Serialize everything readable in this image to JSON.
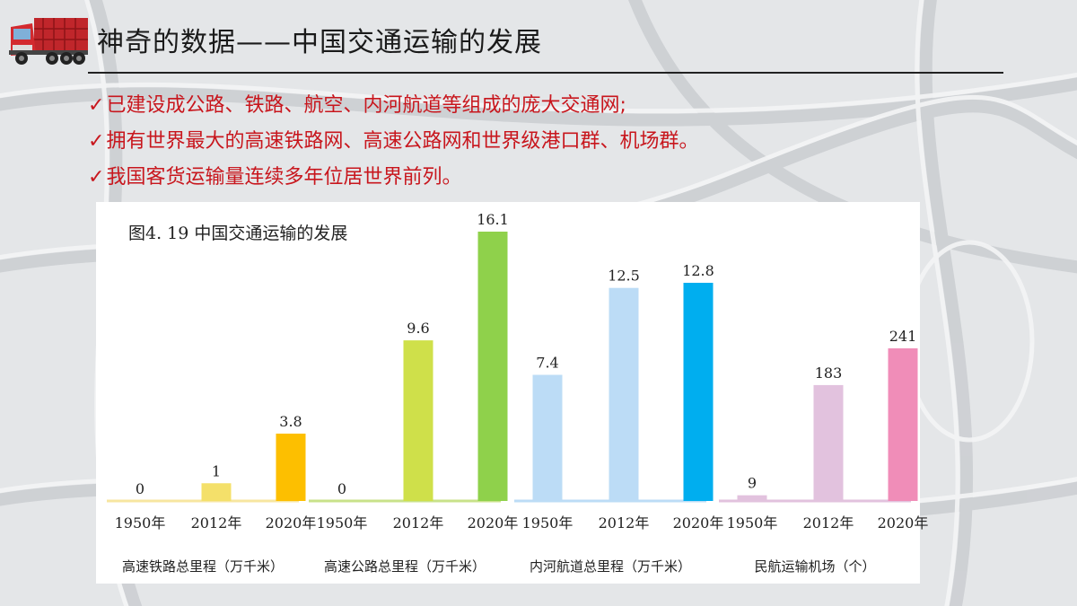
{
  "header": {
    "title": "神奇的数据——中国交通运输的发展",
    "truck_icon": "truck-icon"
  },
  "bullets": [
    {
      "check": "✓",
      "text": "已建设成公路、铁路、航空、内河航道等组成的庞大交通网;"
    },
    {
      "check": "✓",
      "text": "拥有世界最大的高速铁路网、高速公路网和世界级港口群、机场群。"
    },
    {
      "check": "✓",
      "text": "我国客货运输量连续多年位居世界前列。"
    }
  ],
  "colors": {
    "bullet": "#c8161d",
    "rule": "#222222"
  },
  "figure_title": "图4. 19  中国交通运输的发展",
  "chart_data": [
    {
      "type": "bar",
      "title": "高速铁路总里程（万千米）",
      "categories": [
        "1950年",
        "2012年",
        "2020年"
      ],
      "values": [
        0,
        1,
        3.8
      ],
      "value_labels": [
        "0",
        "1",
        "3.8"
      ],
      "colors": [
        "#f7e6a0",
        "#f4e06a",
        "#fdbf00"
      ]
    },
    {
      "type": "bar",
      "title": "高速公路总里程（万千米）",
      "categories": [
        "1950年",
        "2012年",
        "2020年"
      ],
      "values": [
        0,
        9.6,
        16.1
      ],
      "value_labels": [
        "0",
        "9.6",
        "16.1"
      ],
      "colors": [
        "#c8e28a",
        "#cfe04a",
        "#8fd14b"
      ]
    },
    {
      "type": "bar",
      "title": "内河航道总里程（万千米）",
      "categories": [
        "1950年",
        "2012年",
        "2020年"
      ],
      "values": [
        7.4,
        12.5,
        12.8
      ],
      "value_labels": [
        "7.4",
        "12.5",
        "12.8"
      ],
      "colors": [
        "#bcdcf6",
        "#bcdcf6",
        "#00aeef"
      ]
    },
    {
      "type": "bar",
      "title": "民航运输机场（个）",
      "categories": [
        "1950年",
        "2012年",
        "2020年"
      ],
      "values": [
        9,
        183,
        241
      ],
      "value_labels": [
        "9",
        "183",
        "241"
      ],
      "colors": [
        "#e2c2de",
        "#e2c2de",
        "#f08db8"
      ]
    }
  ]
}
